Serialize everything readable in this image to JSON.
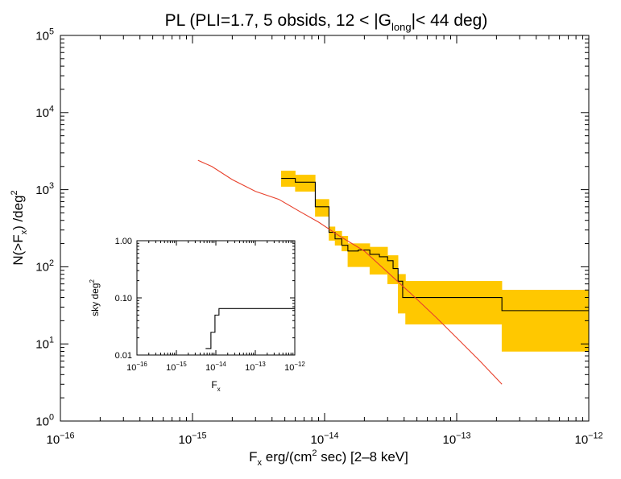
{
  "chart_data": [
    {
      "type": "line",
      "title_parts": {
        "pre": "PL (PLI=1.7, 5 obsids, 12 < |G",
        "sub": "long",
        "post": "|< 44 deg)"
      },
      "xlabel": {
        "main": "F",
        "sub": "x",
        "mid": "  erg/(cm",
        "sup": "2",
        "post": " sec)  [2–8 keV]"
      },
      "ylabel": {
        "pre": "N(>F",
        "sub": "x",
        "mid": ") /deg",
        "sup": "2"
      },
      "xscale": "log",
      "yscale": "log",
      "xlim": [
        1e-16,
        1e-12
      ],
      "ylim": [
        1,
        100000
      ],
      "xticks": [
        {
          "value": 1e-16,
          "base": "10",
          "exp": "−16"
        },
        {
          "value": 1e-15,
          "base": "10",
          "exp": "−15"
        },
        {
          "value": 1e-14,
          "base": "10",
          "exp": "−14"
        },
        {
          "value": 1e-13,
          "base": "10",
          "exp": "−13"
        },
        {
          "value": 1e-12,
          "base": "10",
          "exp": "−12"
        }
      ],
      "yticks": [
        {
          "value": 1,
          "base": "10",
          "exp": "0"
        },
        {
          "value": 10,
          "base": "10",
          "exp": "1"
        },
        {
          "value": 100,
          "base": "10",
          "exp": "2"
        },
        {
          "value": 1000,
          "base": "10",
          "exp": "3"
        },
        {
          "value": 10000,
          "base": "10",
          "exp": "4"
        },
        {
          "value": 100000,
          "base": "10",
          "exp": "5"
        }
      ],
      "band": {
        "name": "uncertainty",
        "color": "#ffc800",
        "steps": [
          {
            "x0": 4.7e-15,
            "x1": 6e-15,
            "lo": 1100,
            "hi": 1750
          },
          {
            "x0": 6e-15,
            "x1": 8.5e-15,
            "lo": 950,
            "hi": 1550
          },
          {
            "x0": 8.5e-15,
            "x1": 1.08e-14,
            "lo": 450,
            "hi": 750
          },
          {
            "x0": 1.08e-14,
            "x1": 1.2e-14,
            "lo": 220,
            "hi": 330
          },
          {
            "x0": 1.2e-14,
            "x1": 1.35e-14,
            "lo": 190,
            "hi": 290
          },
          {
            "x0": 1.35e-14,
            "x1": 1.5e-14,
            "lo": 160,
            "hi": 250
          },
          {
            "x0": 1.5e-14,
            "x1": 2.2e-14,
            "lo": 100,
            "hi": 200
          },
          {
            "x0": 2.2e-14,
            "x1": 3e-14,
            "lo": 80,
            "hi": 180
          },
          {
            "x0": 3e-14,
            "x1": 3.6e-14,
            "lo": 60,
            "hi": 140
          },
          {
            "x0": 3.6e-14,
            "x1": 4.1e-14,
            "lo": 25,
            "hi": 80
          },
          {
            "x0": 4.1e-14,
            "x1": 2.2e-13,
            "lo": 18,
            "hi": 65
          },
          {
            "x0": 2.2e-13,
            "x1": 1e-12,
            "lo": 8,
            "hi": 50
          }
        ]
      },
      "series": [
        {
          "name": "cumulative counts",
          "color": "#000000",
          "step": true,
          "x": [
            4.7e-15,
            6e-15,
            8.5e-15,
            1.08e-14,
            1.2e-14,
            1.35e-14,
            1.5e-14,
            1.8e-14,
            2.2e-14,
            2.6e-14,
            3e-14,
            3.3e-14,
            3.6e-14,
            3.9e-14,
            2.2e-13,
            1e-12
          ],
          "y": [
            1400,
            1250,
            600,
            280,
            230,
            190,
            160,
            165,
            145,
            135,
            120,
            95,
            65,
            40,
            27,
            27
          ]
        },
        {
          "name": "model",
          "color": "#e8412c",
          "step": false,
          "x": [
            1.1e-15,
            1.4e-15,
            2e-15,
            3e-15,
            4.5e-15,
            6.5e-15,
            9e-15,
            1.3e-14,
            2e-14,
            3e-14,
            4.5e-14,
            7e-14,
            1e-13,
            1.5e-13,
            2.2e-13
          ],
          "y": [
            2400,
            2000,
            1350,
            950,
            750,
            520,
            380,
            250,
            160,
            85,
            45,
            22,
            12,
            6,
            3
          ]
        }
      ]
    },
    {
      "type": "line",
      "ylabel": {
        "pre": "sky deg",
        "sup": "2"
      },
      "xlabel": {
        "main": "F",
        "sub": "x"
      },
      "xscale": "log",
      "yscale": "log",
      "xlim": [
        1e-16,
        1e-12
      ],
      "ylim": [
        0.01,
        1
      ],
      "xticks": [
        {
          "value": 1e-16,
          "base": "10",
          "exp": "−16"
        },
        {
          "value": 1e-15,
          "base": "10",
          "exp": "−15"
        },
        {
          "value": 1e-14,
          "base": "10",
          "exp": "−14"
        },
        {
          "value": 1e-13,
          "base": "10",
          "exp": "−13"
        },
        {
          "value": 1e-12,
          "base": "10",
          "exp": "−12"
        }
      ],
      "yticks": [
        {
          "value": 0.01,
          "label": "0.01"
        },
        {
          "value": 0.1,
          "label": "0.10"
        },
        {
          "value": 1,
          "label": "1.00"
        }
      ],
      "series": [
        {
          "name": "sky coverage",
          "color": "#000000",
          "step": true,
          "x": [
            5.5e-15,
            7.5e-15,
            9.5e-15,
            1.2e-14,
            1e-12
          ],
          "y": [
            0.013,
            0.025,
            0.05,
            0.065,
            0.065
          ]
        }
      ]
    }
  ]
}
